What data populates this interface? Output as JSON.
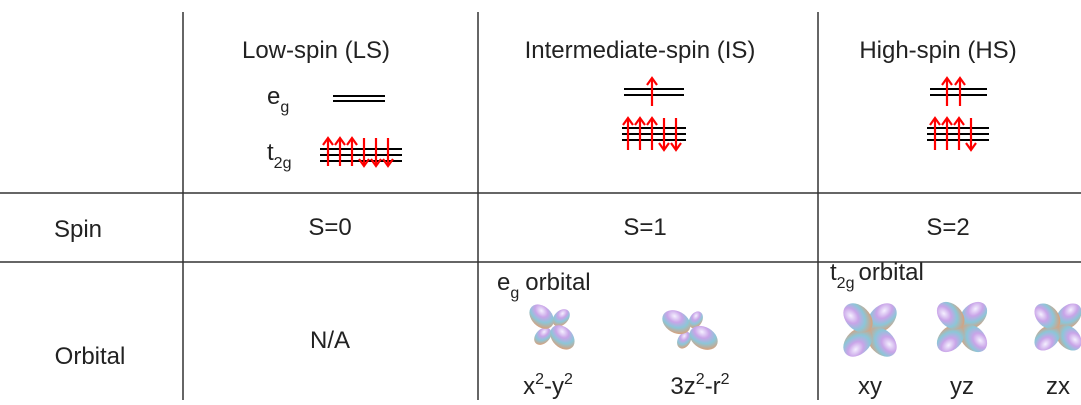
{
  "columns": [
    "Low-spin (LS)",
    "Intermediate-spin (IS)",
    "High-spin (HS)"
  ],
  "levels": {
    "eg": {
      "base": "e",
      "sub": "g"
    },
    "t2g": {
      "base": "t",
      "sub": "2g"
    }
  },
  "rows": [
    {
      "label": "Spin",
      "cells": [
        "S=0",
        "S=1",
        "S=2"
      ]
    },
    {
      "label": "Orbital",
      "cells": [
        "N/A"
      ]
    }
  ],
  "orbitals": {
    "is": {
      "heading": {
        "base": "e",
        "sub": "g",
        "rest": "orbital"
      },
      "items": [
        [
          "x",
          "2",
          "-y",
          "2"
        ],
        [
          "3z",
          "2",
          "-r",
          "2"
        ]
      ]
    },
    "hs": {
      "heading": {
        "base": "t",
        "sub": "2g",
        "rest": "orbital"
      },
      "items": [
        [
          "xy"
        ],
        [
          "yz"
        ],
        [
          "zx"
        ]
      ]
    }
  }
}
